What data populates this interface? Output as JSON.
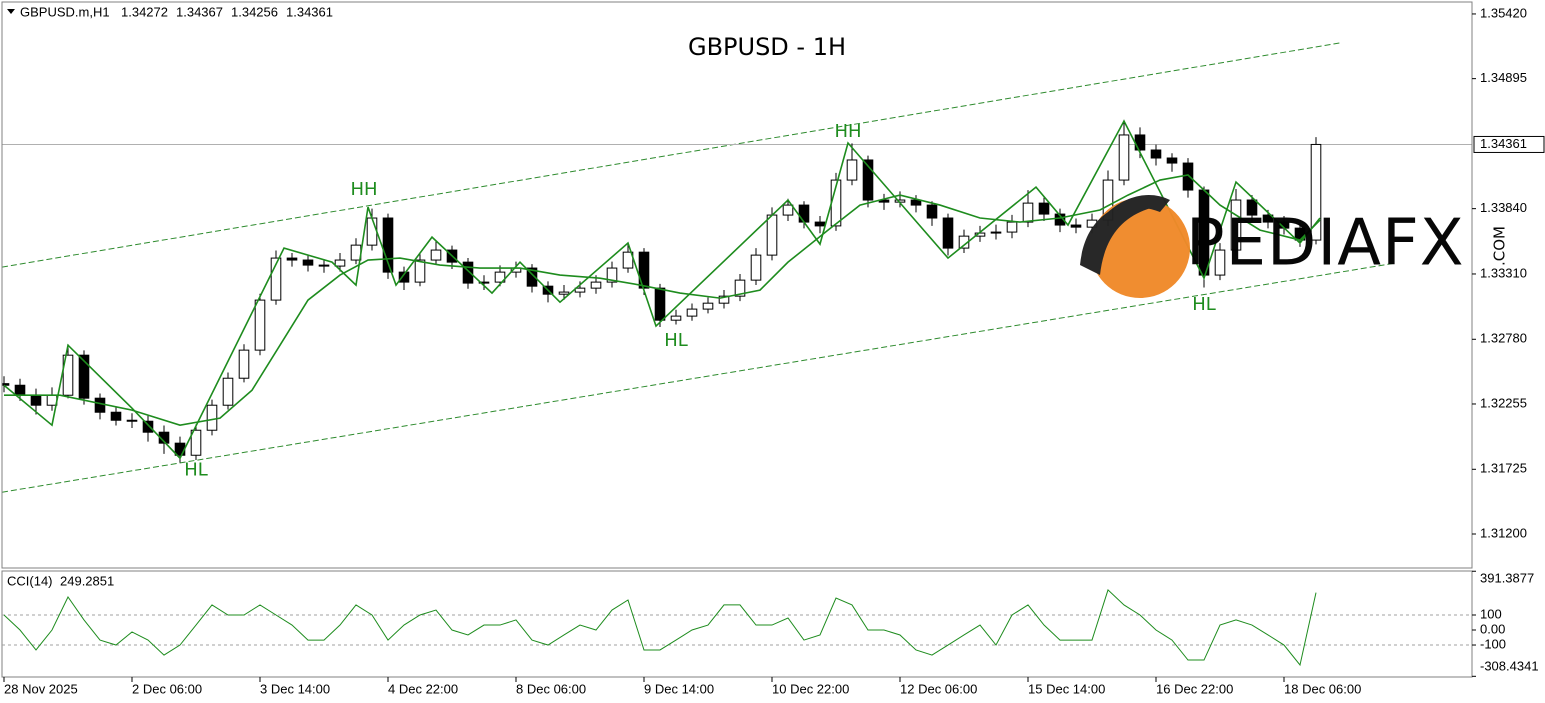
{
  "header": {
    "symbol": "GBPUSD.m,H1",
    "prices": [
      1.34272,
      1.34367,
      1.34256,
      1.34361
    ]
  },
  "watermark": {
    "name": "PEDIAFX",
    "suffix": ".COM"
  },
  "chart_data": [
    {
      "type": "candlestick",
      "title": "GBPUSD - 1H",
      "x": [
        0,
        4,
        8,
        12,
        16,
        20,
        24,
        28,
        32,
        36,
        40,
        44,
        48,
        52,
        56,
        60,
        64,
        68,
        72,
        76,
        80,
        84,
        88,
        92,
        96,
        100,
        104,
        108,
        112,
        116,
        120,
        124,
        128,
        132,
        136,
        140,
        144,
        148,
        152,
        156,
        160,
        164,
        168,
        172,
        176,
        180,
        184,
        188,
        192,
        196,
        200,
        204,
        208,
        212,
        216,
        220,
        224,
        228,
        232,
        236,
        240,
        244,
        248,
        252,
        256,
        260,
        264,
        268,
        272,
        276,
        280,
        284,
        288,
        292,
        296,
        300,
        304,
        308,
        312,
        316,
        320,
        324,
        328
      ],
      "open": [
        1.3242,
        1.32407,
        1.32326,
        1.32245,
        1.32326,
        1.32651,
        1.32302,
        1.32188,
        1.32123,
        1.32115,
        1.32026,
        1.31937,
        1.31839,
        1.32042,
        1.32245,
        1.32464,
        1.32692,
        1.33098,
        1.33439,
        1.33423,
        1.33382,
        1.33374,
        1.33423,
        1.33544,
        1.33764,
        1.33325,
        1.33244,
        1.33423,
        1.33504,
        1.33406,
        1.33236,
        1.33244,
        1.33325,
        1.33358,
        1.33211,
        1.33146,
        1.33163,
        1.33195,
        1.33244,
        1.33358,
        1.33487,
        1.33195,
        1.32935,
        1.32968,
        1.33025,
        1.33073,
        1.3313,
        1.3326,
        1.33463,
        1.33788,
        1.33869,
        1.33731,
        1.337,
        1.34072,
        1.34235,
        1.3391,
        1.33893,
        1.3391,
        1.33869,
        1.33764,
        1.3352,
        1.33617,
        1.33642,
        1.3365,
        1.33731,
        1.33885,
        1.33796,
        1.33707,
        1.3369,
        1.33747,
        1.34072,
        1.34438,
        1.34316,
        1.34251,
        1.3421,
        1.33991,
        1.33301,
        1.33504,
        1.3391,
        1.33788,
        1.33731,
        1.33682,
        1.33585
      ],
      "high": [
        1.3248,
        1.3246,
        1.3238,
        1.3239,
        1.3274,
        1.3269,
        1.3234,
        1.3223,
        1.3218,
        1.3216,
        1.3208,
        1.3199,
        1.3209,
        1.3229,
        1.3251,
        1.3274,
        1.3315,
        1.335,
        1.3348,
        1.3346,
        1.3343,
        1.3348,
        1.336,
        1.3384,
        1.338,
        1.3337,
        1.3347,
        1.3358,
        1.3354,
        1.3344,
        1.333,
        1.3338,
        1.3341,
        1.3339,
        1.3325,
        1.3322,
        1.3325,
        1.333,
        1.3341,
        1.3356,
        1.3352,
        1.3323,
        1.3302,
        1.3307,
        1.3312,
        1.3318,
        1.3331,
        1.3352,
        1.3385,
        1.3392,
        1.339,
        1.3378,
        1.3413,
        1.3437,
        1.3427,
        1.3396,
        1.3398,
        1.3395,
        1.339,
        1.338,
        1.3367,
        1.337,
        1.3371,
        1.3379,
        1.3399,
        1.3393,
        1.3384,
        1.3376,
        1.338,
        1.3415,
        1.3456,
        1.345,
        1.3436,
        1.3429,
        1.3425,
        1.3402,
        1.3356,
        1.34,
        1.3395,
        1.3383,
        1.3378,
        1.3372,
        1.3442
      ],
      "low": [
        1.3235,
        1.3228,
        1.3217,
        1.322,
        1.323,
        1.3225,
        1.3213,
        1.3208,
        1.3206,
        1.3195,
        1.3185,
        1.3178,
        1.318,
        1.32,
        1.3221,
        1.3243,
        1.3265,
        1.3306,
        1.3337,
        1.3333,
        1.3332,
        1.3333,
        1.3339,
        1.335,
        1.3327,
        1.3318,
        1.3321,
        1.3339,
        1.3335,
        1.3319,
        1.3318,
        1.3321,
        1.3328,
        1.3316,
        1.3308,
        1.331,
        1.3312,
        1.3315,
        1.332,
        1.3332,
        1.3314,
        1.3288,
        1.329,
        1.3293,
        1.3299,
        1.3303,
        1.3309,
        1.3322,
        1.3342,
        1.3374,
        1.3368,
        1.3364,
        1.3366,
        1.3403,
        1.3385,
        1.3383,
        1.3385,
        1.3381,
        1.337,
        1.3346,
        1.3348,
        1.3357,
        1.3359,
        1.336,
        1.3369,
        1.3374,
        1.3365,
        1.3364,
        1.3364,
        1.337,
        1.3403,
        1.3425,
        1.3419,
        1.3414,
        1.3393,
        1.332,
        1.3326,
        1.3346,
        1.3373,
        1.3368,
        1.3363,
        1.3353,
        1.3355
      ],
      "close": [
        1.32407,
        1.32326,
        1.32245,
        1.32326,
        1.32651,
        1.32302,
        1.32188,
        1.32123,
        1.32115,
        1.32026,
        1.31937,
        1.31839,
        1.32042,
        1.32245,
        1.32464,
        1.32692,
        1.33098,
        1.33439,
        1.33423,
        1.33382,
        1.33374,
        1.33423,
        1.33544,
        1.33764,
        1.33325,
        1.33244,
        1.33423,
        1.33504,
        1.33406,
        1.33236,
        1.33244,
        1.33325,
        1.33358,
        1.33211,
        1.33146,
        1.33163,
        1.33195,
        1.33244,
        1.33358,
        1.33487,
        1.33195,
        1.32935,
        1.32968,
        1.33025,
        1.33073,
        1.3313,
        1.3326,
        1.33463,
        1.33788,
        1.33869,
        1.33731,
        1.337,
        1.34072,
        1.34235,
        1.3391,
        1.33893,
        1.3391,
        1.33869,
        1.33764,
        1.3352,
        1.33617,
        1.33642,
        1.3365,
        1.33731,
        1.33885,
        1.33796,
        1.33707,
        1.3369,
        1.33747,
        1.34072,
        1.34438,
        1.34316,
        1.34251,
        1.3421,
        1.33991,
        1.33301,
        1.33504,
        1.3391,
        1.33788,
        1.33731,
        1.33682,
        1.33585,
        1.34361
      ],
      "up_color": "#ffffff",
      "down_color": "#000000",
      "xlim": [
        -0.5,
        367
      ],
      "ylim": [
        1.30924,
        1.35517
      ],
      "yticks": [
        {
          "value": 1.3542,
          "label": "1.35420"
        },
        {
          "value": 1.34895,
          "label": "1.34895"
        },
        {
          "value": 1.3384,
          "label": "1.33840"
        },
        {
          "value": 1.3331,
          "label": "1.33310"
        },
        {
          "value": 1.3278,
          "label": "1.32780"
        },
        {
          "value": 1.32255,
          "label": "1.32255"
        },
        {
          "value": 1.31725,
          "label": "1.31725"
        },
        {
          "value": 1.312,
          "label": "1.31200"
        }
      ],
      "last_price": {
        "value": 1.34361,
        "label": "1.34361"
      },
      "moving_average": {
        "color": "#1e8c1e",
        "x": [
          0,
          14,
          32,
          44,
          54,
          62,
          69,
          76,
          84,
          91,
          99,
          109,
          119,
          129,
          139,
          149,
          159,
          169,
          179,
          189,
          196,
          206,
          214,
          224,
          234,
          244,
          254,
          264,
          274,
          281,
          289,
          296,
          304,
          314,
          324,
          329
        ],
        "values": [
          1.32326,
          1.32326,
          1.32205,
          1.32083,
          1.3214,
          1.32367,
          1.32732,
          1.33098,
          1.33301,
          1.33423,
          1.33439,
          1.33382,
          1.33358,
          1.33358,
          1.33301,
          1.33276,
          1.3322,
          1.33155,
          1.33114,
          1.33179,
          1.33406,
          1.33666,
          1.33869,
          1.3395,
          1.33869,
          1.33764,
          1.33731,
          1.33764,
          1.33829,
          1.3395,
          1.34072,
          1.34113,
          1.33869,
          1.33666,
          1.33585,
          1.33747
        ]
      },
      "zigzag": {
        "color": "#1e8c1e",
        "x": [
          0,
          12,
          16,
          32,
          44,
          70,
          82,
          88,
          91,
          98,
          107,
          122,
          129,
          139,
          156,
          163,
          196,
          204,
          211,
          236,
          258,
          266,
          280,
          300,
          308,
          324,
          329
        ],
        "values": [
          1.32407,
          1.32083,
          1.32732,
          1.32221,
          1.31815,
          1.3352,
          1.33406,
          1.3322,
          1.33853,
          1.3322,
          1.33609,
          1.33155,
          1.33406,
          1.33081,
          1.33561,
          1.32887,
          1.3391,
          1.33552,
          1.34373,
          1.33439,
          1.34015,
          1.33707,
          1.34551,
          1.33276,
          1.34056,
          1.33561,
          1.33764
        ]
      },
      "channel": {
        "color": "#2e8b2e",
        "lines": [
          {
            "x": [
              -0.5,
              334
            ],
            "values": [
              1.33366,
              1.35185
            ]
          },
          {
            "x": [
              -0.5,
              347.75
            ],
            "values": [
              1.31539,
              1.33398
            ]
          }
        ]
      },
      "annotation_color": "#1e8c1e",
      "annotations": [
        {
          "text": "HH",
          "x": 90,
          "y": 1.33991
        },
        {
          "text": "HH",
          "x": 211,
          "y": 1.34462
        },
        {
          "text": "HL",
          "x": 48,
          "y": 1.31717
        },
        {
          "text": "HL",
          "x": 168,
          "y": 1.32765
        },
        {
          "text": "HL",
          "x": 300,
          "y": 1.33057
        }
      ]
    },
    {
      "type": "line",
      "label": "CCI(14)",
      "current": 249.2851,
      "color": "#1e8c1e",
      "x": [
        0,
        4,
        8,
        12,
        16,
        20,
        24,
        28,
        32,
        36,
        40,
        44,
        48,
        52,
        56,
        60,
        64,
        68,
        72,
        76,
        80,
        84,
        88,
        92,
        96,
        100,
        104,
        108,
        112,
        116,
        120,
        124,
        128,
        132,
        136,
        140,
        144,
        148,
        152,
        156,
        160,
        164,
        168,
        172,
        176,
        180,
        184,
        188,
        192,
        196,
        200,
        204,
        208,
        212,
        216,
        220,
        224,
        228,
        232,
        236,
        240,
        244,
        248,
        252,
        256,
        260,
        264,
        268,
        272,
        276,
        280,
        284,
        288,
        292,
        296,
        300,
        304,
        308,
        312,
        316,
        320,
        324,
        328
      ],
      "values": [
        100,
        0,
        -133,
        0,
        220,
        67,
        -67,
        -100,
        -13,
        -67,
        -167,
        -100,
        33,
        167,
        100,
        100,
        167,
        100,
        33,
        -67,
        -67,
        33,
        167,
        100,
        -67,
        33,
        100,
        133,
        0,
        -33,
        33,
        33,
        67,
        -67,
        -100,
        -33,
        33,
        0,
        133,
        200,
        -133,
        -133,
        -67,
        0,
        33,
        167,
        167,
        33,
        33,
        80,
        -67,
        -33,
        213,
        167,
        0,
        0,
        -33,
        -133,
        -167,
        -100,
        -33,
        33,
        -100,
        100,
        167,
        33,
        -67,
        -67,
        -67,
        267,
        167,
        100,
        0,
        -67,
        -200,
        -200,
        33,
        67,
        33,
        -33,
        -100,
        -233,
        249.2851
      ],
      "xlim": [
        -0.5,
        367
      ],
      "ylim": [
        -313,
        393
      ],
      "yticks": [
        391.3877,
        100,
        {
          "value": 0,
          "label": "0.00"
        },
        -100,
        -308.4341
      ],
      "levels": [
        100,
        -100
      ],
      "xticks": [
        {
          "value": 0,
          "label": "28 Nov 2025"
        },
        {
          "value": 32,
          "label": "2 Dec 06:00"
        },
        {
          "value": 64,
          "label": "3 Dec 14:00"
        },
        {
          "value": 96,
          "label": "4 Dec 22:00"
        },
        {
          "value": 128,
          "label": "8 Dec 06:00"
        },
        {
          "value": 160,
          "label": "9 Dec 14:00"
        },
        {
          "value": 192,
          "label": "10 Dec 22:00"
        },
        {
          "value": 224,
          "label": "12 Dec 06:00"
        },
        {
          "value": 256,
          "label": "15 Dec 14:00"
        },
        {
          "value": 288,
          "label": "16 Dec 22:00"
        },
        {
          "value": 320,
          "label": "18 Dec 06:00"
        }
      ]
    }
  ]
}
